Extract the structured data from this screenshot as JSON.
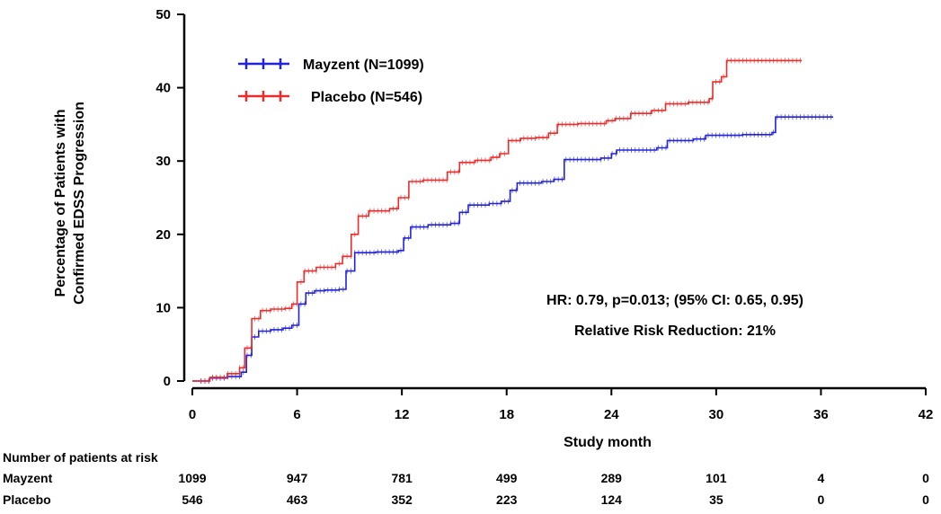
{
  "chart_data": {
    "type": "line",
    "xlabel": "Study month",
    "ylabel": [
      "Percentage of Patients with",
      "Confirmed EDSS Progression"
    ],
    "xlim": [
      0,
      42
    ],
    "ylim": [
      0,
      50
    ],
    "x_ticks": [
      0,
      6,
      12,
      18,
      24,
      30,
      36,
      42
    ],
    "y_ticks": [
      0,
      10,
      20,
      30,
      40,
      50
    ],
    "grid": false,
    "legend_position": "top-left",
    "series": [
      {
        "name": "Mayzent (N=1099)",
        "color": "#2222dd",
        "points": [
          [
            0,
            0
          ],
          [
            1,
            0.4
          ],
          [
            2,
            0.6
          ],
          [
            2.8,
            1.2
          ],
          [
            3.1,
            3.5
          ],
          [
            3.4,
            6
          ],
          [
            3.8,
            6.8
          ],
          [
            4.5,
            7
          ],
          [
            5.2,
            7.2
          ],
          [
            5.7,
            7.6
          ],
          [
            6.1,
            10.5
          ],
          [
            6.5,
            12
          ],
          [
            7,
            12.3
          ],
          [
            7.6,
            12.4
          ],
          [
            8.4,
            12.5
          ],
          [
            8.8,
            15
          ],
          [
            9.3,
            17.5
          ],
          [
            10.5,
            17.6
          ],
          [
            11.8,
            17.8
          ],
          [
            12.1,
            19.5
          ],
          [
            12.5,
            21
          ],
          [
            13.5,
            21.3
          ],
          [
            14.8,
            21.5
          ],
          [
            15.3,
            23
          ],
          [
            15.8,
            24
          ],
          [
            17,
            24.2
          ],
          [
            17.7,
            24.5
          ],
          [
            18.2,
            26
          ],
          [
            18.6,
            27
          ],
          [
            20,
            27.2
          ],
          [
            20.7,
            27.5
          ],
          [
            21.3,
            30.2
          ],
          [
            23.4,
            30.4
          ],
          [
            24,
            31
          ],
          [
            24.3,
            31.5
          ],
          [
            26.6,
            31.8
          ],
          [
            27.2,
            32.8
          ],
          [
            28.7,
            33
          ],
          [
            29.4,
            33.5
          ],
          [
            31.5,
            33.6
          ],
          [
            33.2,
            33.9
          ],
          [
            33.4,
            36
          ],
          [
            36.7,
            36
          ]
        ]
      },
      {
        "name": "Placebo (N=546)",
        "color": "#ee2b2b",
        "points": [
          [
            0,
            0
          ],
          [
            1,
            0.5
          ],
          [
            2,
            1
          ],
          [
            2.7,
            1.8
          ],
          [
            3,
            4.5
          ],
          [
            3.4,
            8.5
          ],
          [
            3.9,
            9.6
          ],
          [
            4.5,
            9.8
          ],
          [
            5.3,
            9.9
          ],
          [
            5.7,
            10.5
          ],
          [
            6,
            13.5
          ],
          [
            6.4,
            15
          ],
          [
            7.1,
            15.5
          ],
          [
            8.2,
            16
          ],
          [
            8.6,
            17
          ],
          [
            9.1,
            20
          ],
          [
            9.5,
            22.5
          ],
          [
            10.1,
            23.2
          ],
          [
            11.3,
            23.5
          ],
          [
            11.8,
            25
          ],
          [
            12.4,
            27.2
          ],
          [
            13.2,
            27.4
          ],
          [
            14.6,
            28.5
          ],
          [
            15.3,
            29.8
          ],
          [
            16.2,
            30.1
          ],
          [
            17.1,
            30.5
          ],
          [
            17.6,
            31
          ],
          [
            18.1,
            32.8
          ],
          [
            18.8,
            33.1
          ],
          [
            19.7,
            33.2
          ],
          [
            20.4,
            33.8
          ],
          [
            20.9,
            35
          ],
          [
            22.1,
            35.1
          ],
          [
            23.7,
            35.5
          ],
          [
            24.2,
            35.8
          ],
          [
            25.1,
            36.5
          ],
          [
            26.3,
            36.9
          ],
          [
            27.1,
            37.8
          ],
          [
            28.4,
            38
          ],
          [
            29.6,
            38.5
          ],
          [
            29.8,
            40.8
          ],
          [
            30.3,
            41.5
          ],
          [
            30.6,
            43.7
          ],
          [
            34.9,
            43.7
          ]
        ]
      }
    ],
    "annotations": [
      "HR: 0.79, p=0.013; (95% CI: 0.65, 0.95)",
      "Relative Risk Reduction: 21%"
    ],
    "risk_table": {
      "title": "Number of patients at risk",
      "rows": [
        {
          "label": "Mayzent",
          "values": [
            1099,
            947,
            781,
            499,
            289,
            101,
            4,
            0
          ]
        },
        {
          "label": "Placebo",
          "values": [
            546,
            463,
            352,
            223,
            124,
            35,
            0,
            0
          ]
        }
      ]
    }
  }
}
